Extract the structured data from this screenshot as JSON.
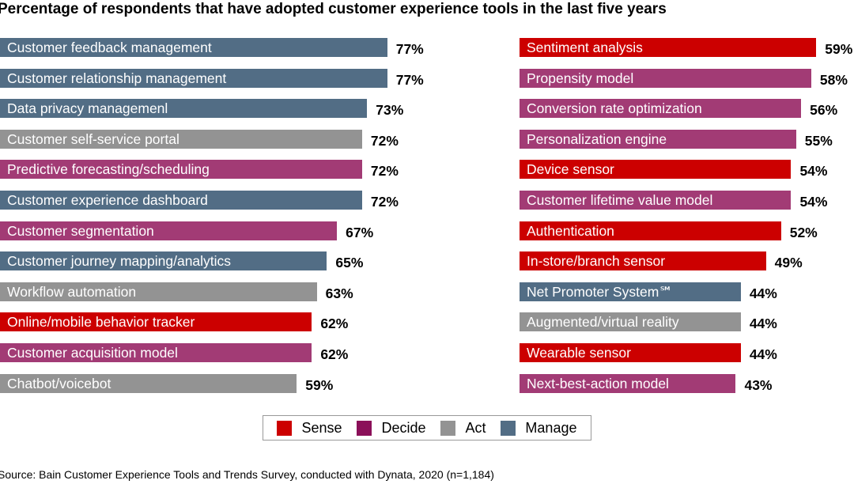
{
  "chart_data": {
    "type": "bar",
    "orientation": "horizontal",
    "title": "Percentage of respondents that have adopted customer experience tools in the last five years",
    "unit": "%",
    "xlim": [
      0,
      100
    ],
    "grid": false,
    "legend_placement": "bottom-center",
    "colors": {
      "Sense": "#cc0000",
      "Decide": "#a23b75",
      "Act": "#939393",
      "Manage": "#526d85"
    },
    "legend": [
      {
        "label": "Sense",
        "color": "#cc0000"
      },
      {
        "label": "Decide",
        "color": "#8b1059"
      },
      {
        "label": "Act",
        "color": "#939393"
      },
      {
        "label": "Manage",
        "color": "#526d85"
      }
    ],
    "panels": [
      {
        "bars": [
          {
            "label": "Customer feedback management",
            "value": 77,
            "category": "Manage"
          },
          {
            "label": "Customer relationship management",
            "value": 77,
            "category": "Manage"
          },
          {
            "label": "Data privacy managemenl",
            "value": 73,
            "category": "Manage"
          },
          {
            "label": "Customer self-service portal",
            "value": 72,
            "category": "Act"
          },
          {
            "label": "Predictive forecasting/scheduling",
            "value": 72,
            "category": "Decide"
          },
          {
            "label": "Customer experience dashboard",
            "value": 72,
            "category": "Manage"
          },
          {
            "label": "Customer segmentation",
            "value": 67,
            "category": "Decide"
          },
          {
            "label": "Customer journey mapping/analytics",
            "value": 65,
            "category": "Manage"
          },
          {
            "label": "Workflow automation",
            "value": 63,
            "category": "Act"
          },
          {
            "label": "Online/mobile behavior tracker",
            "value": 62,
            "category": "Sense"
          },
          {
            "label": "Customer acquisition model",
            "value": 62,
            "category": "Decide"
          },
          {
            "label": "Chatbot/voicebot",
            "value": 59,
            "category": "Act"
          }
        ]
      },
      {
        "bars": [
          {
            "label": "Sentiment analysis",
            "value": 59,
            "category": "Sense"
          },
          {
            "label": "Propensity model",
            "value": 58,
            "category": "Decide"
          },
          {
            "label": "Conversion rate optimization",
            "value": 56,
            "category": "Decide"
          },
          {
            "label": "Personalization engine",
            "value": 55,
            "category": "Decide"
          },
          {
            "label": "Device sensor",
            "value": 54,
            "category": "Sense"
          },
          {
            "label": "Customer lifetime value model",
            "value": 54,
            "category": "Decide"
          },
          {
            "label": "Authentication",
            "value": 52,
            "category": "Sense"
          },
          {
            "label": "In-store/branch sensor",
            "value": 49,
            "category": "Sense"
          },
          {
            "label": "Net Promoter System℠",
            "value": 44,
            "category": "Manage"
          },
          {
            "label": "Augmented/virtual reality",
            "value": 44,
            "category": "Act"
          },
          {
            "label": "Wearable sensor",
            "value": 44,
            "category": "Sense"
          },
          {
            "label": "Next-best-action model",
            "value": 43,
            "category": "Decide"
          }
        ]
      }
    ],
    "source": "Source: Bain Customer Experience Tools and Trends Survey, conducted with Dynata, 2020 (n=1,184)"
  }
}
